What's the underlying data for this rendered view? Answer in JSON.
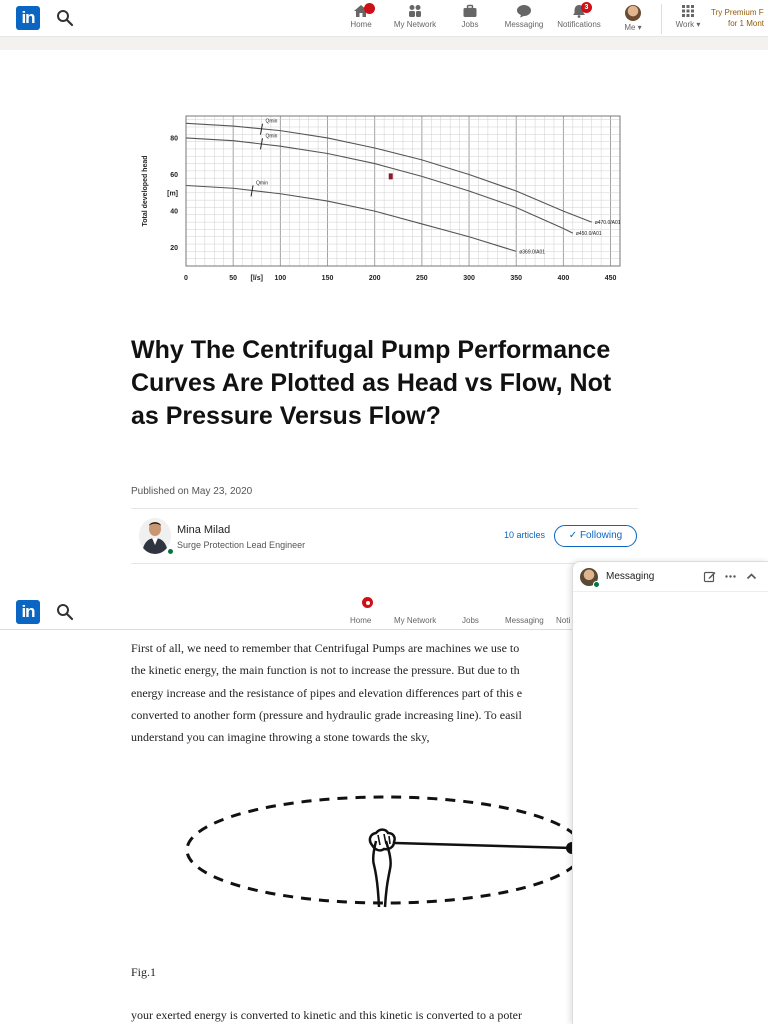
{
  "topnav": {
    "items": [
      {
        "label": "Home",
        "icon": "home-icon"
      },
      {
        "label": "My Network",
        "icon": "network-icon"
      },
      {
        "label": "Jobs",
        "icon": "briefcase-icon"
      },
      {
        "label": "Messaging",
        "icon": "message-icon"
      },
      {
        "label": "Notifications",
        "icon": "bell-icon",
        "badge": "3"
      },
      {
        "label": "Me",
        "icon": "avatar"
      },
      {
        "label": "Work",
        "icon": "grid-icon"
      }
    ],
    "premium_line1": "Try Premium F",
    "premium_line2": "for 1 Mont"
  },
  "article": {
    "title": "Why The Centrifugal Pump Performance Curves Are Plotted as Head vs Flow, Not as Pressure Versus Flow?",
    "published": "Published on May 23, 2020",
    "author_name": "Mina Milad",
    "author_role": "Surge Protection Lead Engineer",
    "articles_count": "10 articles",
    "following_label": "Following",
    "paragraph_lines": [
      "First of all, we need to remember that Centrifugal Pumps are machines we use to",
      "the kinetic energy, the main function is not to increase the pressure. But due to th",
      "energy increase and the resistance of pipes and elevation differences part of this e",
      "converted to another form (pressure and hydraulic grade increasing line). To easil",
      "understand you can imagine throwing a stone towards the sky,"
    ],
    "fig_caption": "Fig.1",
    "bottom_line": "your exerted energy is converted to kinetic and this kinetic is converted to a poter"
  },
  "stickynav": {
    "items": [
      "Home",
      "My Network",
      "Jobs",
      "Messaging",
      "Noti"
    ]
  },
  "messaging": {
    "title": "Messaging"
  },
  "colors": {
    "brand": "#0a66c2",
    "badge": "#cc1016",
    "online": "#057642",
    "premium": "#915907"
  },
  "chart_data": {
    "type": "line",
    "ylabel": "Total developed head",
    "yunit": "[m]",
    "xunit": "[l/s]",
    "x_ticks": [
      "0",
      "50",
      "100",
      "150",
      "200",
      "250",
      "300",
      "350",
      "400",
      "450"
    ],
    "y_ticks": [
      "20",
      "40",
      "60",
      "80"
    ],
    "xlim": [
      0,
      460
    ],
    "ylim": [
      10,
      92
    ],
    "grid": true,
    "series": [
      {
        "name": "ø470.0/A01",
        "x": [
          0,
          50,
          100,
          150,
          200,
          250,
          300,
          350,
          400,
          430
        ],
        "y": [
          88,
          86.5,
          84,
          80,
          74.5,
          68,
          60,
          51,
          40,
          34
        ]
      },
      {
        "name": "ø450.0/A01",
        "x": [
          0,
          50,
          100,
          150,
          200,
          250,
          300,
          350,
          400,
          410
        ],
        "y": [
          80,
          78.5,
          75.5,
          71.5,
          66,
          59,
          51,
          42,
          30.5,
          28
        ]
      },
      {
        "name": "ø369.0/A01",
        "x": [
          0,
          50,
          100,
          150,
          200,
          250,
          300,
          350
        ],
        "y": [
          54,
          52.5,
          49.5,
          45.5,
          40,
          33,
          26,
          18
        ]
      }
    ],
    "annotations": [
      "Qmin",
      "Qmin",
      "Qmin"
    ],
    "marker": {
      "x": 217,
      "y": 59
    }
  }
}
